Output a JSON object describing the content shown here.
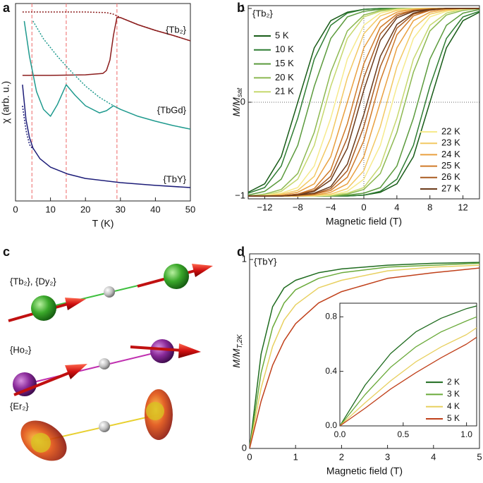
{
  "chart_data": [
    {
      "type": "line",
      "panel_label": "a",
      "ylabel": "χ (arb. u.)",
      "xlabel": "T (K)",
      "xlim": [
        0,
        50
      ],
      "xticks": [
        0,
        10,
        20,
        30,
        40,
        50
      ],
      "ylim": [
        0,
        1
      ],
      "vlines": [
        4.7,
        14.5,
        29
      ],
      "vline_color": "#f08080",
      "series": [
        {
          "name": "{Tb₂}",
          "color": "#8b1c1c",
          "style": "solid",
          "x": [
            2,
            10,
            20,
            25,
            26,
            27,
            28,
            29,
            30,
            35,
            40,
            45,
            50
          ],
          "values": [
            0.636,
            0.636,
            0.639,
            0.646,
            0.661,
            0.714,
            0.839,
            0.929,
            0.929,
            0.893,
            0.864,
            0.839,
            0.811
          ]
        },
        {
          "color": "#8b1c1c",
          "style": "dotted",
          "x": [
            2,
            10,
            20,
            26,
            28,
            30,
            35,
            40,
            45,
            50
          ],
          "values": [
            0.957,
            0.957,
            0.957,
            0.954,
            0.946,
            0.929,
            0.893,
            0.864,
            0.839,
            0.811
          ]
        },
        {
          "name": "{TbGd}",
          "color": "#1f9a8e",
          "style": "solid",
          "x": [
            2.5,
            4,
            6,
            8,
            10,
            12,
            14.5,
            17,
            20,
            24,
            26,
            28,
            30,
            35,
            40,
            45,
            50
          ],
          "values": [
            0.911,
            0.732,
            0.554,
            0.464,
            0.429,
            0.489,
            0.589,
            0.536,
            0.482,
            0.446,
            0.457,
            0.482,
            0.464,
            0.429,
            0.404,
            0.382,
            0.364
          ]
        },
        {
          "color": "#1f9a8e",
          "style": "dotted",
          "x": [
            5,
            8,
            12,
            16,
            20,
            24,
            28
          ],
          "values": [
            0.911,
            0.821,
            0.732,
            0.654,
            0.582,
            0.525,
            0.482
          ]
        },
        {
          "name": "{TbY}",
          "color": "#1c1c78",
          "style": "solid",
          "x": [
            2,
            3,
            4,
            5,
            7,
            10,
            15,
            20,
            30,
            40,
            50
          ],
          "values": [
            0.589,
            0.411,
            0.321,
            0.268,
            0.214,
            0.171,
            0.136,
            0.114,
            0.093,
            0.079,
            0.068
          ]
        },
        {
          "color": "#1c1c78",
          "style": "dotted",
          "x": [
            2,
            3,
            4,
            5
          ],
          "values": [
            0.482,
            0.357,
            0.286,
            0.261
          ]
        }
      ]
    },
    {
      "type": "hysteresis",
      "panel_label": "b",
      "annotation": "{Tb₂}",
      "ylabel": {
        "main": "M/M",
        "sub": "sat"
      },
      "xlabel": "Magnetic field (T)",
      "xlim": [
        -14,
        14
      ],
      "xticks": [
        {
          "value": -12,
          "label": "−12"
        },
        {
          "value": -8,
          "label": "−8"
        },
        {
          "value": -4,
          "label": "−4"
        },
        0,
        4,
        8,
        12
      ],
      "ylim": [
        -1.03,
        1.03
      ],
      "yticks": [
        {
          "value": -1,
          "label": "−1"
        },
        0,
        1
      ],
      "zero_lines": true,
      "x": [
        -14,
        -12,
        -10,
        -8,
        -6,
        -4,
        -2,
        0,
        2,
        4,
        6,
        8,
        10,
        12,
        14
      ],
      "series": [
        {
          "name": "5 K",
          "color": "#185c18",
          "sweep_down": [
            -0.96,
            -0.87,
            -0.58,
            0,
            0.58,
            0.87,
            0.96,
            0.99,
            1,
            1,
            1,
            1,
            1,
            1,
            1
          ],
          "sweep_up": [
            -1,
            -1,
            -1,
            -1,
            -1,
            -1,
            -1,
            -0.99,
            -0.96,
            -0.87,
            -0.58,
            0,
            0.58,
            0.87,
            0.96
          ]
        },
        {
          "name": "10 K",
          "color": "#2e7d32",
          "sweep_down": [
            -0.97,
            -0.91,
            -0.68,
            -0.17,
            0.46,
            0.82,
            0.95,
            0.99,
            1,
            1,
            1,
            1,
            1,
            1,
            1
          ],
          "sweep_up": [
            -1,
            -1,
            -1,
            -1,
            -1,
            -1,
            -1,
            -0.99,
            -0.95,
            -0.82,
            -0.46,
            0.17,
            0.68,
            0.91,
            0.97
          ]
        },
        {
          "name": "15 K",
          "color": "#5a9a3c",
          "sweep_down": [
            -0.99,
            -0.95,
            -0.82,
            -0.46,
            0.17,
            0.68,
            0.91,
            0.97,
            0.99,
            1,
            1,
            1,
            1,
            1,
            1
          ],
          "sweep_up": [
            -1,
            -1,
            -1,
            -1,
            -1,
            -1,
            -0.99,
            -0.97,
            -0.91,
            -0.68,
            -0.17,
            0.46,
            0.82,
            0.95,
            0.99
          ]
        },
        {
          "name": "20 K",
          "color": "#8cb850",
          "sweep_down": [
            -1,
            -0.98,
            -0.93,
            -0.76,
            -0.32,
            0.32,
            0.76,
            0.93,
            0.98,
            1,
            1,
            1,
            1,
            1,
            1
          ],
          "sweep_up": [
            -1,
            -1,
            -1,
            -1,
            -1,
            -1,
            -0.98,
            -0.93,
            -0.76,
            -0.32,
            0.32,
            0.76,
            0.93,
            0.98,
            1
          ]
        },
        {
          "name": "21 K",
          "color": "#c6d86e",
          "sweep_down": [
            -1,
            -0.99,
            -0.95,
            -0.82,
            -0.46,
            0.17,
            0.68,
            0.91,
            0.97,
            0.99,
            1,
            1,
            1,
            1,
            1
          ],
          "sweep_up": [
            -1,
            -1,
            -1,
            -1,
            -1,
            -0.99,
            -0.97,
            -0.91,
            -0.68,
            -0.17,
            0.46,
            0.82,
            0.95,
            0.99,
            1
          ]
        },
        {
          "name": "22 K",
          "color": "#f6ea8c",
          "sweep_down": [
            -1,
            -0.99,
            -0.97,
            -0.91,
            -0.68,
            -0.17,
            0.46,
            0.82,
            0.95,
            0.99,
            1,
            1,
            1,
            1,
            1
          ],
          "sweep_up": [
            -1,
            -1,
            -1,
            -1,
            -1,
            -0.99,
            -0.95,
            -0.82,
            -0.46,
            0.17,
            0.68,
            0.91,
            0.97,
            0.99,
            1
          ]
        },
        {
          "name": "23 K",
          "color": "#f2c862",
          "sweep_down": [
            -1,
            -1,
            -0.98,
            -0.94,
            -0.79,
            -0.38,
            0.26,
            0.73,
            0.92,
            0.98,
            0.99,
            1,
            1,
            1,
            1
          ],
          "sweep_up": [
            -1,
            -1,
            -1,
            -1,
            -0.99,
            -0.98,
            -0.92,
            -0.73,
            -0.26,
            0.38,
            0.79,
            0.94,
            0.98,
            1,
            1
          ]
        },
        {
          "name": "24 K",
          "color": "#e9a040",
          "sweep_down": [
            -1,
            -1,
            -0.99,
            -0.96,
            -0.87,
            -0.58,
            0,
            0.58,
            0.87,
            0.96,
            0.99,
            1,
            1,
            1,
            1
          ],
          "sweep_up": [
            -1,
            -1,
            -1,
            -1,
            -0.99,
            -0.96,
            -0.87,
            -0.58,
            0,
            0.58,
            0.87,
            0.96,
            0.99,
            1,
            1
          ]
        },
        {
          "name": "25 K",
          "color": "#d07a28",
          "sweep_down": [
            -1,
            -1,
            -1,
            -0.98,
            -0.92,
            -0.72,
            -0.23,
            0.41,
            0.8,
            0.94,
            0.98,
            0.99,
            1,
            1,
            1
          ],
          "sweep_up": [
            -1,
            -1,
            -1,
            -0.99,
            -0.98,
            -0.94,
            -0.8,
            -0.41,
            0.23,
            0.72,
            0.92,
            0.98,
            1,
            1,
            1
          ]
        },
        {
          "name": "26 K",
          "color": "#a85a20",
          "sweep_down": [
            -1,
            -1,
            -1,
            -0.98,
            -0.94,
            -0.79,
            -0.38,
            0.26,
            0.73,
            0.92,
            0.98,
            0.99,
            1,
            1,
            1
          ],
          "sweep_up": [
            -1,
            -1,
            -1,
            -0.99,
            -0.98,
            -0.92,
            -0.73,
            -0.26,
            0.38,
            0.79,
            0.94,
            0.98,
            1,
            1,
            1
          ]
        },
        {
          "name": "27 K",
          "color": "#6b3a1a",
          "sweep_down": [
            -1,
            -1,
            -1,
            -0.99,
            -0.95,
            -0.83,
            -0.49,
            0.13,
            0.66,
            0.9,
            0.97,
            0.99,
            1,
            1,
            1
          ],
          "sweep_up": [
            -1,
            -1,
            -1,
            -0.99,
            -0.97,
            -0.9,
            -0.66,
            -0.13,
            0.49,
            0.83,
            0.95,
            0.99,
            1,
            1,
            1
          ]
        }
      ]
    },
    {
      "type": "line",
      "panel_label": "d",
      "annotation": "{TbY}",
      "ylabel": {
        "main": "M/M",
        "sub": "T,2K"
      },
      "xlabel": "Magnetic field (T)",
      "xlim": [
        0,
        5
      ],
      "xticks": [
        0,
        1,
        2,
        3,
        4,
        5
      ],
      "ylim": [
        0,
        1.03
      ],
      "yticks": [
        0,
        1
      ],
      "x": [
        0,
        0.25,
        0.5,
        0.75,
        1,
        1.5,
        2,
        3,
        4,
        5
      ],
      "series": [
        {
          "color": "#1e6b1e",
          "values": [
            0,
            0.5,
            0.75,
            0.85,
            0.89,
            0.93,
            0.95,
            0.97,
            0.98,
            0.985
          ]
        },
        {
          "color": "#6aaa3a",
          "values": [
            0,
            0.4,
            0.64,
            0.77,
            0.84,
            0.9,
            0.93,
            0.96,
            0.97,
            0.98
          ]
        },
        {
          "color": "#e8d060",
          "values": [
            0,
            0.32,
            0.54,
            0.68,
            0.76,
            0.85,
            0.89,
            0.94,
            0.96,
            0.97
          ]
        },
        {
          "color": "#c0401a",
          "values": [
            0,
            0.25,
            0.44,
            0.57,
            0.66,
            0.77,
            0.83,
            0.9,
            0.93,
            0.955
          ]
        }
      ]
    },
    {
      "type": "line",
      "legend": "lower right",
      "xlim": [
        0,
        1.08
      ],
      "xticks": [
        {
          "value": 0,
          "label": "0.0"
        },
        {
          "value": 0.5,
          "label": "0.5"
        },
        {
          "value": 1,
          "label": "1.0"
        }
      ],
      "ylim": [
        0,
        0.9
      ],
      "yticks": [
        {
          "value": 0,
          "label": "0.0"
        },
        {
          "value": 0.4,
          "label": "0.4"
        },
        {
          "value": 0.8,
          "label": "0.8"
        }
      ],
      "x": [
        0,
        0.2,
        0.4,
        0.6,
        0.8,
        1.0,
        1.08
      ],
      "series": [
        {
          "name": "2 K",
          "color": "#1e6b1e",
          "values": [
            0,
            0.3,
            0.53,
            0.69,
            0.79,
            0.86,
            0.88
          ]
        },
        {
          "name": "3 K",
          "color": "#6aaa3a",
          "values": [
            0,
            0.23,
            0.43,
            0.58,
            0.69,
            0.77,
            0.8
          ]
        },
        {
          "name": "4 K",
          "color": "#e8d060",
          "values": [
            0,
            0.17,
            0.33,
            0.47,
            0.58,
            0.67,
            0.72
          ]
        },
        {
          "name": "5 K",
          "color": "#c0401a",
          "values": [
            0,
            0.13,
            0.27,
            0.39,
            0.5,
            0.6,
            0.65
          ]
        }
      ]
    }
  ],
  "panel_c": {
    "letter": "c",
    "labels": [
      "{Tb₂}, {Dy₂}",
      "{Ho₂}",
      "{Er₂}"
    ]
  }
}
